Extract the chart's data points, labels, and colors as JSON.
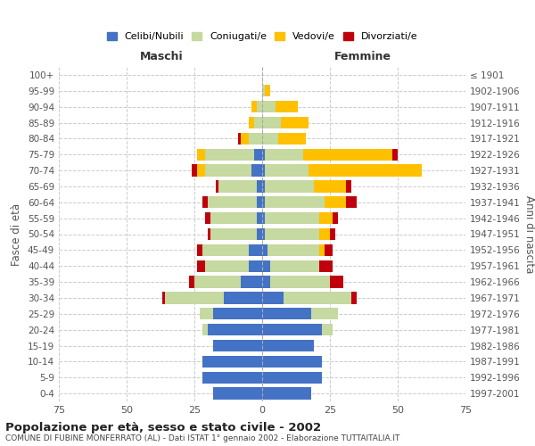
{
  "age_groups": [
    "0-4",
    "5-9",
    "10-14",
    "15-19",
    "20-24",
    "25-29",
    "30-34",
    "35-39",
    "40-44",
    "45-49",
    "50-54",
    "55-59",
    "60-64",
    "65-69",
    "70-74",
    "75-79",
    "80-84",
    "85-89",
    "90-94",
    "95-99",
    "100+"
  ],
  "birth_years": [
    "1997-2001",
    "1992-1996",
    "1987-1991",
    "1982-1986",
    "1977-1981",
    "1972-1976",
    "1967-1971",
    "1962-1966",
    "1957-1961",
    "1952-1956",
    "1947-1951",
    "1942-1946",
    "1937-1941",
    "1932-1936",
    "1927-1931",
    "1922-1926",
    "1917-1921",
    "1912-1916",
    "1907-1911",
    "1902-1906",
    "≤ 1901"
  ],
  "male": {
    "celibi": [
      18,
      22,
      22,
      18,
      20,
      18,
      14,
      8,
      5,
      5,
      2,
      2,
      2,
      2,
      4,
      3,
      0,
      0,
      0,
      0,
      0
    ],
    "coniugati": [
      0,
      0,
      0,
      0,
      2,
      5,
      22,
      17,
      16,
      17,
      17,
      17,
      18,
      14,
      17,
      18,
      5,
      3,
      2,
      0,
      0
    ],
    "vedovi": [
      0,
      0,
      0,
      0,
      0,
      0,
      0,
      0,
      0,
      0,
      0,
      0,
      0,
      0,
      3,
      3,
      3,
      2,
      2,
      0,
      0
    ],
    "divorziati": [
      0,
      0,
      0,
      0,
      0,
      0,
      1,
      2,
      3,
      2,
      1,
      2,
      2,
      1,
      2,
      0,
      1,
      0,
      0,
      0,
      0
    ]
  },
  "female": {
    "nubili": [
      18,
      22,
      22,
      19,
      22,
      18,
      8,
      3,
      3,
      2,
      1,
      1,
      1,
      1,
      1,
      1,
      0,
      0,
      0,
      0,
      0
    ],
    "coniugate": [
      0,
      0,
      0,
      0,
      4,
      10,
      25,
      22,
      18,
      19,
      20,
      20,
      22,
      18,
      16,
      14,
      6,
      7,
      5,
      1,
      0
    ],
    "vedove": [
      0,
      0,
      0,
      0,
      0,
      0,
      0,
      0,
      0,
      2,
      4,
      5,
      8,
      12,
      42,
      33,
      10,
      10,
      8,
      2,
      0
    ],
    "divorziate": [
      0,
      0,
      0,
      0,
      0,
      0,
      2,
      5,
      5,
      3,
      2,
      2,
      4,
      2,
      0,
      2,
      0,
      0,
      0,
      0,
      0
    ]
  },
  "colors": {
    "celibi": "#4472c4",
    "coniugati": "#c5d9a0",
    "vedovi": "#ffc000",
    "divorziati": "#c0000c"
  },
  "xlim": 75,
  "title": "Popolazione per età, sesso e stato civile - 2002",
  "subtitle": "COMUNE DI FUBINE MONFERRATO (AL) - Dati ISTAT 1° gennaio 2002 - Elaborazione TUTTAITALIA.IT",
  "ylabel_left": "Fasce di età",
  "ylabel_right": "Anni di nascita",
  "xlabel_male": "Maschi",
  "xlabel_female": "Femmine",
  "legend_labels": [
    "Celibi/Nubili",
    "Coniugati/e",
    "Vedovi/e",
    "Divorziati/e"
  ],
  "grid_color": "#cccccc"
}
